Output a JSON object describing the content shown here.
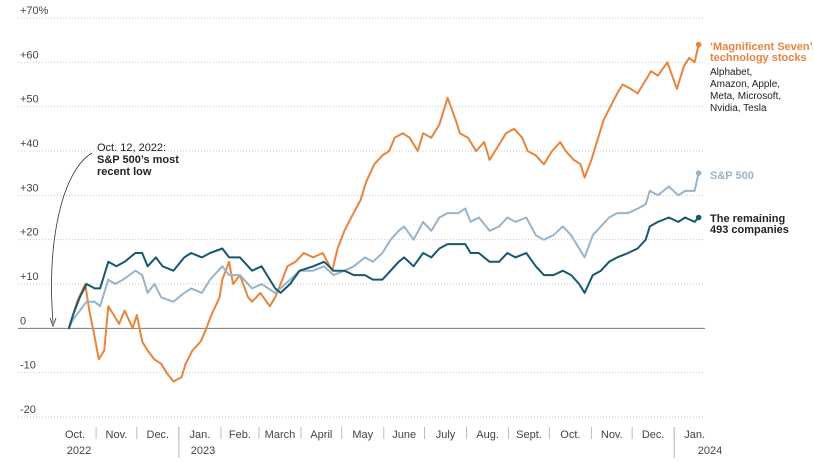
{
  "chart_data": {
    "type": "line",
    "ylim": [
      -20,
      70
    ],
    "y_ticks": [
      {
        "value": 70,
        "label": "+70%"
      },
      {
        "value": 60,
        "label": "+60"
      },
      {
        "value": 50,
        "label": "+50"
      },
      {
        "value": 40,
        "label": "+40"
      },
      {
        "value": 30,
        "label": "+30"
      },
      {
        "value": 20,
        "label": "+20"
      },
      {
        "value": 10,
        "label": "+10"
      },
      {
        "value": 0,
        "label": "0"
      },
      {
        "value": -10,
        "label": "-10"
      },
      {
        "value": -20,
        "label": "-20"
      }
    ],
    "x_range": [
      "2022-10-01",
      "2024-01-20"
    ],
    "month_ticks": [
      {
        "date": "2022-10-01",
        "label": "Oct."
      },
      {
        "date": "2022-11-01",
        "label": "Nov."
      },
      {
        "date": "2022-12-01",
        "label": "Dec."
      },
      {
        "date": "2023-01-01",
        "label": "Jan."
      },
      {
        "date": "2023-02-01",
        "label": "Feb."
      },
      {
        "date": "2023-03-01",
        "label": "March"
      },
      {
        "date": "2023-04-01",
        "label": "April"
      },
      {
        "date": "2023-05-01",
        "label": "May"
      },
      {
        "date": "2023-06-01",
        "label": "June"
      },
      {
        "date": "2023-07-01",
        "label": "July"
      },
      {
        "date": "2023-08-01",
        "label": "Aug."
      },
      {
        "date": "2023-09-01",
        "label": "Sept."
      },
      {
        "date": "2023-10-01",
        "label": "Oct."
      },
      {
        "date": "2023-11-01",
        "label": "Nov."
      },
      {
        "date": "2023-12-01",
        "label": "Dec."
      },
      {
        "date": "2024-01-01",
        "label": "Jan."
      }
    ],
    "year_labels": [
      {
        "date": "2022-10-01",
        "label": "2022"
      },
      {
        "date": "2023-01-01",
        "label": "2023"
      },
      {
        "date": "2024-01-01",
        "label": "2024"
      }
    ],
    "series": [
      {
        "key": "mag7",
        "color": "#e8843c",
        "points": [
          [
            "2022-10-12",
            0
          ],
          [
            "2022-10-15",
            3
          ],
          [
            "2022-10-18",
            6
          ],
          [
            "2022-10-21",
            8
          ],
          [
            "2022-10-24",
            10
          ],
          [
            "2022-10-27",
            4
          ],
          [
            "2022-10-31",
            -2
          ],
          [
            "2022-11-03",
            -7
          ],
          [
            "2022-11-07",
            -5
          ],
          [
            "2022-11-10",
            5
          ],
          [
            "2022-11-14",
            3
          ],
          [
            "2022-11-18",
            1
          ],
          [
            "2022-11-22",
            4
          ],
          [
            "2022-11-28",
            0
          ],
          [
            "2022-12-01",
            3
          ],
          [
            "2022-12-05",
            -3
          ],
          [
            "2022-12-09",
            -5
          ],
          [
            "2022-12-14",
            -7
          ],
          [
            "2022-12-19",
            -8
          ],
          [
            "2022-12-23",
            -10
          ],
          [
            "2022-12-28",
            -12
          ],
          [
            "2023-01-03",
            -11
          ],
          [
            "2023-01-06",
            -8
          ],
          [
            "2023-01-11",
            -5
          ],
          [
            "2023-01-17",
            -3
          ],
          [
            "2023-01-20",
            -1
          ],
          [
            "2023-01-25",
            3
          ],
          [
            "2023-01-31",
            7
          ],
          [
            "2023-02-02",
            11
          ],
          [
            "2023-02-07",
            15
          ],
          [
            "2023-02-10",
            10
          ],
          [
            "2023-02-15",
            12
          ],
          [
            "2023-02-21",
            7
          ],
          [
            "2023-02-24",
            6
          ],
          [
            "2023-03-02",
            8
          ],
          [
            "2023-03-09",
            5
          ],
          [
            "2023-03-13",
            7
          ],
          [
            "2023-03-17",
            10
          ],
          [
            "2023-03-22",
            14
          ],
          [
            "2023-03-28",
            15
          ],
          [
            "2023-04-03",
            17
          ],
          [
            "2023-04-10",
            16
          ],
          [
            "2023-04-17",
            17
          ],
          [
            "2023-04-24",
            13
          ],
          [
            "2023-04-28",
            18
          ],
          [
            "2023-05-03",
            22
          ],
          [
            "2023-05-08",
            25
          ],
          [
            "2023-05-15",
            29
          ],
          [
            "2023-05-19",
            33
          ],
          [
            "2023-05-25",
            37
          ],
          [
            "2023-05-31",
            39
          ],
          [
            "2023-06-05",
            40
          ],
          [
            "2023-06-09",
            43
          ],
          [
            "2023-06-15",
            44
          ],
          [
            "2023-06-20",
            43
          ],
          [
            "2023-06-26",
            40
          ],
          [
            "2023-06-30",
            44
          ],
          [
            "2023-07-06",
            43
          ],
          [
            "2023-07-12",
            46
          ],
          [
            "2023-07-18",
            52
          ],
          [
            "2023-07-24",
            47
          ],
          [
            "2023-07-27",
            44
          ],
          [
            "2023-08-02",
            43
          ],
          [
            "2023-08-08",
            40
          ],
          [
            "2023-08-14",
            42
          ],
          [
            "2023-08-18",
            38
          ],
          [
            "2023-08-24",
            41
          ],
          [
            "2023-08-30",
            44
          ],
          [
            "2023-09-05",
            45
          ],
          [
            "2023-09-11",
            43
          ],
          [
            "2023-09-15",
            40
          ],
          [
            "2023-09-21",
            39
          ],
          [
            "2023-09-27",
            37
          ],
          [
            "2023-10-03",
            40
          ],
          [
            "2023-10-09",
            42
          ],
          [
            "2023-10-13",
            40
          ],
          [
            "2023-10-19",
            38
          ],
          [
            "2023-10-24",
            37
          ],
          [
            "2023-10-27",
            34
          ],
          [
            "2023-11-01",
            38
          ],
          [
            "2023-11-06",
            43
          ],
          [
            "2023-11-10",
            47
          ],
          [
            "2023-11-15",
            50
          ],
          [
            "2023-11-20",
            53
          ],
          [
            "2023-11-24",
            55
          ],
          [
            "2023-11-30",
            54
          ],
          [
            "2023-12-05",
            53
          ],
          [
            "2023-12-11",
            56
          ],
          [
            "2023-12-15",
            58
          ],
          [
            "2023-12-20",
            57
          ],
          [
            "2023-12-27",
            60
          ],
          [
            "2024-01-03",
            54
          ],
          [
            "2024-01-08",
            59
          ],
          [
            "2024-01-12",
            61
          ],
          [
            "2024-01-16",
            60
          ],
          [
            "2024-01-19",
            64
          ]
        ]
      },
      {
        "key": "sp500",
        "color": "#98b4cc",
        "points": [
          [
            "2022-10-12",
            0
          ],
          [
            "2022-10-15",
            2
          ],
          [
            "2022-10-20",
            4
          ],
          [
            "2022-10-25",
            6
          ],
          [
            "2022-10-31",
            6
          ],
          [
            "2022-11-04",
            5
          ],
          [
            "2022-11-10",
            11
          ],
          [
            "2022-11-15",
            10
          ],
          [
            "2022-11-21",
            11
          ],
          [
            "2022-11-30",
            13
          ],
          [
            "2022-12-05",
            12
          ],
          [
            "2022-12-09",
            8
          ],
          [
            "2022-12-14",
            10
          ],
          [
            "2022-12-19",
            7
          ],
          [
            "2022-12-28",
            6
          ],
          [
            "2023-01-05",
            8
          ],
          [
            "2023-01-10",
            9
          ],
          [
            "2023-01-18",
            8
          ],
          [
            "2023-01-24",
            11
          ],
          [
            "2023-02-02",
            14
          ],
          [
            "2023-02-07",
            12
          ],
          [
            "2023-02-15",
            12
          ],
          [
            "2023-02-24",
            9
          ],
          [
            "2023-03-03",
            10
          ],
          [
            "2023-03-13",
            8
          ],
          [
            "2023-03-17",
            9
          ],
          [
            "2023-03-24",
            11
          ],
          [
            "2023-03-31",
            13
          ],
          [
            "2023-04-10",
            13
          ],
          [
            "2023-04-18",
            14
          ],
          [
            "2023-04-25",
            12
          ],
          [
            "2023-05-03",
            13
          ],
          [
            "2023-05-10",
            14
          ],
          [
            "2023-05-18",
            16
          ],
          [
            "2023-05-24",
            15
          ],
          [
            "2023-05-31",
            17
          ],
          [
            "2023-06-06",
            20
          ],
          [
            "2023-06-12",
            22
          ],
          [
            "2023-06-16",
            23
          ],
          [
            "2023-06-23",
            20
          ],
          [
            "2023-06-30",
            24
          ],
          [
            "2023-07-06",
            22
          ],
          [
            "2023-07-12",
            25
          ],
          [
            "2023-07-18",
            26
          ],
          [
            "2023-07-26",
            26
          ],
          [
            "2023-07-31",
            27
          ],
          [
            "2023-08-04",
            24
          ],
          [
            "2023-08-10",
            25
          ],
          [
            "2023-08-18",
            22
          ],
          [
            "2023-08-25",
            23
          ],
          [
            "2023-08-31",
            25
          ],
          [
            "2023-09-06",
            24
          ],
          [
            "2023-09-14",
            25
          ],
          [
            "2023-09-21",
            21
          ],
          [
            "2023-09-27",
            20
          ],
          [
            "2023-10-04",
            21
          ],
          [
            "2023-10-11",
            23
          ],
          [
            "2023-10-17",
            21
          ],
          [
            "2023-10-23",
            18
          ],
          [
            "2023-10-27",
            16
          ],
          [
            "2023-11-02",
            21
          ],
          [
            "2023-11-08",
            23
          ],
          [
            "2023-11-14",
            25
          ],
          [
            "2023-11-20",
            26
          ],
          [
            "2023-11-28",
            26
          ],
          [
            "2023-12-05",
            27
          ],
          [
            "2023-12-11",
            28
          ],
          [
            "2023-12-14",
            31
          ],
          [
            "2023-12-20",
            30
          ],
          [
            "2023-12-28",
            32
          ],
          [
            "2024-01-04",
            30
          ],
          [
            "2024-01-09",
            31
          ],
          [
            "2024-01-16",
            31
          ],
          [
            "2024-01-19",
            35
          ]
        ]
      },
      {
        "key": "rest493",
        "color": "#17586f",
        "points": [
          [
            "2022-10-12",
            0
          ],
          [
            "2022-10-15",
            3
          ],
          [
            "2022-10-20",
            7
          ],
          [
            "2022-10-25",
            10
          ],
          [
            "2022-10-31",
            9
          ],
          [
            "2022-11-04",
            9
          ],
          [
            "2022-11-10",
            15
          ],
          [
            "2022-11-16",
            14
          ],
          [
            "2022-11-22",
            15
          ],
          [
            "2022-11-30",
            17
          ],
          [
            "2022-12-05",
            17
          ],
          [
            "2022-12-09",
            14
          ],
          [
            "2022-12-15",
            16
          ],
          [
            "2022-12-20",
            14
          ],
          [
            "2022-12-28",
            13
          ],
          [
            "2023-01-05",
            16
          ],
          [
            "2023-01-10",
            17
          ],
          [
            "2023-01-18",
            16
          ],
          [
            "2023-01-24",
            17
          ],
          [
            "2023-02-02",
            18
          ],
          [
            "2023-02-07",
            16
          ],
          [
            "2023-02-15",
            16
          ],
          [
            "2023-02-24",
            13
          ],
          [
            "2023-03-03",
            14
          ],
          [
            "2023-03-09",
            11
          ],
          [
            "2023-03-13",
            9
          ],
          [
            "2023-03-17",
            8
          ],
          [
            "2023-03-24",
            10
          ],
          [
            "2023-03-31",
            13
          ],
          [
            "2023-04-10",
            14
          ],
          [
            "2023-04-18",
            15
          ],
          [
            "2023-04-25",
            13
          ],
          [
            "2023-05-03",
            13
          ],
          [
            "2023-05-10",
            12
          ],
          [
            "2023-05-18",
            12
          ],
          [
            "2023-05-24",
            11
          ],
          [
            "2023-05-31",
            11
          ],
          [
            "2023-06-06",
            13
          ],
          [
            "2023-06-12",
            15
          ],
          [
            "2023-06-16",
            16
          ],
          [
            "2023-06-23",
            14
          ],
          [
            "2023-06-30",
            17
          ],
          [
            "2023-07-06",
            16
          ],
          [
            "2023-07-12",
            18
          ],
          [
            "2023-07-18",
            19
          ],
          [
            "2023-07-26",
            19
          ],
          [
            "2023-07-31",
            19
          ],
          [
            "2023-08-04",
            17
          ],
          [
            "2023-08-10",
            17
          ],
          [
            "2023-08-18",
            15
          ],
          [
            "2023-08-25",
            15
          ],
          [
            "2023-08-31",
            17
          ],
          [
            "2023-09-06",
            16
          ],
          [
            "2023-09-14",
            17
          ],
          [
            "2023-09-21",
            14
          ],
          [
            "2023-09-27",
            12
          ],
          [
            "2023-10-04",
            12
          ],
          [
            "2023-10-11",
            13
          ],
          [
            "2023-10-17",
            12
          ],
          [
            "2023-10-23",
            10
          ],
          [
            "2023-10-27",
            8
          ],
          [
            "2023-11-02",
            12
          ],
          [
            "2023-11-08",
            13
          ],
          [
            "2023-11-14",
            15
          ],
          [
            "2023-11-20",
            16
          ],
          [
            "2023-11-28",
            17
          ],
          [
            "2023-12-05",
            18
          ],
          [
            "2023-12-11",
            20
          ],
          [
            "2023-12-14",
            23
          ],
          [
            "2023-12-20",
            24
          ],
          [
            "2023-12-28",
            25
          ],
          [
            "2024-01-04",
            24
          ],
          [
            "2024-01-09",
            25
          ],
          [
            "2024-01-16",
            24
          ],
          [
            "2024-01-19",
            25
          ]
        ]
      }
    ],
    "annotations": {
      "mag7_title_line1": "‘Magnificent Seven’",
      "mag7_title_line2": "technology stocks",
      "mag7_members": [
        "Alphabet,",
        "Amazon, Apple,",
        "Meta, Microsoft,",
        "Nvidia, Tesla"
      ],
      "sp500_label": "S&P 500",
      "rest_line1": "The remaining",
      "rest_line2": "493 companies",
      "low_date": "Oct. 12, 2022:",
      "low_line1": "S&P 500’s most",
      "low_line2": "recent low"
    },
    "colors": {
      "mag7": "#e8843c",
      "sp500": "#98b4cc",
      "rest493": "#17586f",
      "annotation_text": "#222222"
    }
  }
}
